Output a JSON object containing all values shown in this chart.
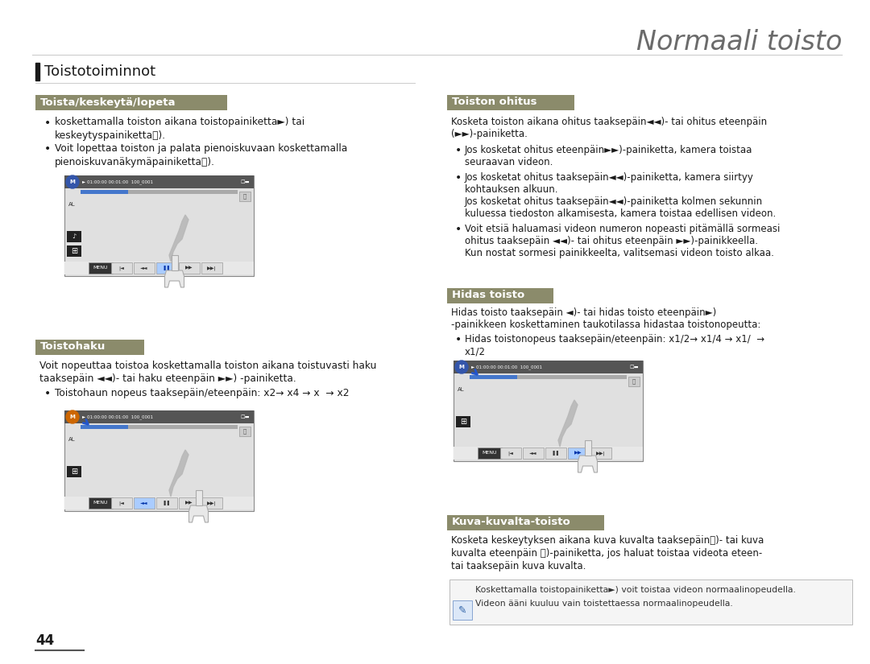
{
  "title": "Normaali toisto",
  "title_color": "#6b6b6b",
  "title_fontsize": 24,
  "bg_color": "#ffffff",
  "section_left_title": "Toistotoiminnot",
  "section_bar_color": "#1a1a1a",
  "subsection_bg_color": "#8B8B6B",
  "subsection_text_color": "#ffffff",
  "body_text_color": "#1a1a1a",
  "page_number": "44",
  "sub1_title": "Toista/keskeytä/lopeta",
  "sub1_bullets": [
    "koskettamalla toiston aikana toistopainiketta►) tai\nkeskeytyspainiketta⏸).",
    "Voit lopettaa toiston ja palata pienoiskuvaan koskettamalla\npienoiskuvanäkymäpainiketta⧉)."
  ],
  "sub2_title": "Toistohaku",
  "sub2_body": [
    "Voit nopeuttaa toistoa koskettamalla toiston aikana toistuvasti haku",
    "taaksepäin ◄◄)- tai haku eteenpäin ►►) -painiketta."
  ],
  "sub2_bullet": "Toistohaun nopeus taaksepäin/eteenpäin: x2→ x4 → x  → x2",
  "sub3_title": "Toiston ohitus",
  "sub3_body1": "Kosketa toiston aikana ohitus taaksepäin◄◄)- tai ohitus eteenpäin\n(►►)-painiketta.",
  "sub3_bullets": [
    "Jos kosketat ohitus eteenpäin►►)-painiketta, kamera toistaa\nseuraavan videon.",
    "Jos kosketat ohitus taaksepäin◄◄)-painiketta, kamera siirtyy\nkohtauksen alkuun.\nJos kosketat ohitus taaksepäin◄◄)-painiketta kolmen sekunnin\nkuluessa tiedoston alkamisesta, kamera toistaa edellisen videon.",
    "Voit etsiä haluamasi videon numeron nopeasti pitämällä sormeasi\nohitus taaksepäin ◄◄)- tai ohitus eteenpäin ►►)-painikkeella.\nKun nostat sormesi painikkeelta, valitsemasi videon toisto alkaa."
  ],
  "sub4_title": "Hidas toisto",
  "sub4_body": [
    "Hidas toisto taaksepäin ◄)- tai hidas toisto eteenpäin►)",
    "-painikkeen koskettaminen taukotilassa hidastaa toistonopeutta:"
  ],
  "sub4_bullet": "Hidas toistonopeus taaksepäin/eteenpäin: x1/2→ x1/4 → x1/  →\nx1/2",
  "sub5_title": "Kuva-kuvalta-toisto",
  "sub5_body": [
    "Kosketa keskeytyksen aikana kuva kuvalta taaksepäin⏮)- tai kuva",
    "kuvalta eteenpäin ⏭)-painiketta, jos haluat toistaa videota eteen-",
    "tai taaksepäin kuva kuvalta."
  ],
  "note_lines": [
    "Koskettamalla toistopainiketta►) voit toistaa videon normaalinopeudella.",
    "Videon ääni kuuluu vain toistettaessa normaalinopeudella."
  ]
}
